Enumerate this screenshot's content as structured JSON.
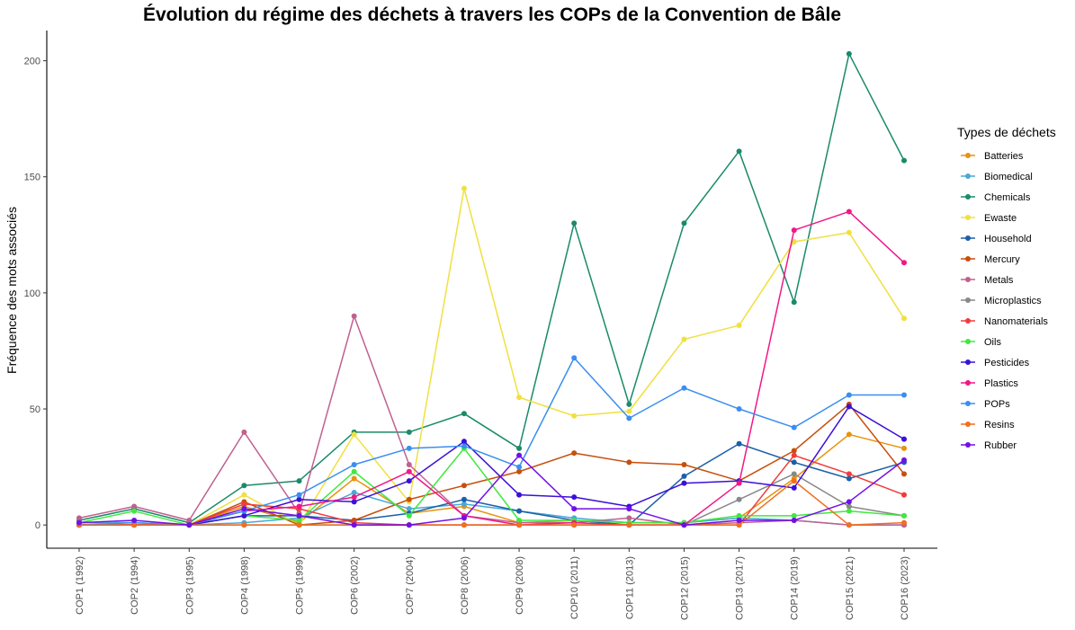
{
  "chart_data": {
    "type": "line",
    "title": "Évolution du régime des déchets à travers les COPs de la Convention de Bâle",
    "xlabel": "",
    "ylabel": "Fréquence des mots associés",
    "ylim": [
      -10,
      213
    ],
    "yticks": [
      0,
      50,
      100,
      150,
      200
    ],
    "grid": false,
    "legend": {
      "title": "Types de déchets",
      "position": "right"
    },
    "categories": [
      "COP1 (1992)",
      "COP2 (1994)",
      "COP3 (1995)",
      "COP4 (1998)",
      "COP5 (1999)",
      "COP6 (2002)",
      "COP7 (2004)",
      "COP8 (2006)",
      "COP9 (2008)",
      "COP10 (2011)",
      "COP11 (2013)",
      "COP12 (2015)",
      "COP13 (2017)",
      "COP14 (2019)",
      "COP15 (2021)",
      "COP16 (2023)"
    ],
    "series": [
      {
        "name": "Batteries",
        "color": "#e8930c",
        "values": [
          0,
          0,
          0,
          8,
          1,
          20,
          5,
          8,
          1,
          2,
          1,
          1,
          3,
          20,
          39,
          33
        ]
      },
      {
        "name": "Biomedical",
        "color": "#4aa8d8",
        "values": [
          1,
          1,
          0,
          1,
          3,
          14,
          7,
          9,
          6,
          3,
          1,
          1,
          3,
          2,
          0,
          0
        ]
      },
      {
        "name": "Chemicals",
        "color": "#1a8a6a",
        "values": [
          2,
          7,
          1,
          17,
          19,
          40,
          40,
          48,
          33,
          130,
          52,
          130,
          161,
          96,
          203,
          157
        ]
      },
      {
        "name": "Ewaste",
        "color": "#f0e040",
        "values": [
          0,
          0,
          0,
          13,
          0,
          39,
          10,
          145,
          55,
          47,
          49,
          80,
          86,
          122,
          126,
          89
        ]
      },
      {
        "name": "Household",
        "color": "#1a5fa8",
        "values": [
          0,
          0,
          0,
          4,
          4,
          2,
          5,
          11,
          6,
          2,
          0,
          21,
          35,
          27,
          20,
          27
        ]
      },
      {
        "name": "Mercury",
        "color": "#c84e0c",
        "values": [
          0,
          0,
          0,
          10,
          0,
          2,
          11,
          17,
          23,
          31,
          27,
          26,
          19,
          32,
          52,
          22
        ]
      },
      {
        "name": "Metals",
        "color": "#c06090",
        "values": [
          3,
          8,
          2,
          40,
          5,
          90,
          26,
          4,
          1,
          1,
          3,
          0,
          1,
          2,
          0,
          0
        ]
      },
      {
        "name": "Microplastics",
        "color": "#888888",
        "values": [
          0,
          0,
          0,
          0,
          0,
          0,
          0,
          0,
          0,
          0,
          0,
          0,
          11,
          22,
          8,
          4
        ]
      },
      {
        "name": "Nanomaterials",
        "color": "#f03c3c",
        "values": [
          0,
          0,
          0,
          9,
          7,
          1,
          0,
          0,
          0,
          0,
          0,
          0,
          0,
          30,
          22,
          13
        ]
      },
      {
        "name": "Oils",
        "color": "#40e840",
        "values": [
          1,
          6,
          0,
          4,
          2,
          23,
          4,
          33,
          2,
          2,
          1,
          1,
          4,
          4,
          6,
          4
        ]
      },
      {
        "name": "Pesticides",
        "color": "#3a10d8",
        "values": [
          0,
          0,
          0,
          4,
          11,
          10,
          19,
          36,
          13,
          12,
          8,
          18,
          19,
          16,
          51,
          37
        ]
      },
      {
        "name": "Plastics",
        "color": "#f01888",
        "values": [
          0,
          0,
          0,
          6,
          8,
          12,
          23,
          4,
          0,
          1,
          0,
          0,
          18,
          127,
          135,
          113
        ]
      },
      {
        "name": "POPs",
        "color": "#3a8ef0",
        "values": [
          0,
          1,
          0,
          6,
          13,
          26,
          33,
          34,
          25,
          72,
          46,
          59,
          50,
          42,
          56,
          56
        ]
      },
      {
        "name": "Resins",
        "color": "#f07020",
        "values": [
          0,
          0,
          0,
          0,
          0,
          0,
          0,
          0,
          0,
          0,
          0,
          0,
          0,
          19,
          0,
          1
        ]
      },
      {
        "name": "Rubber",
        "color": "#7010e8",
        "values": [
          1,
          2,
          0,
          7,
          4,
          0,
          0,
          3,
          30,
          7,
          7,
          0,
          2,
          2,
          10,
          28
        ]
      }
    ]
  }
}
